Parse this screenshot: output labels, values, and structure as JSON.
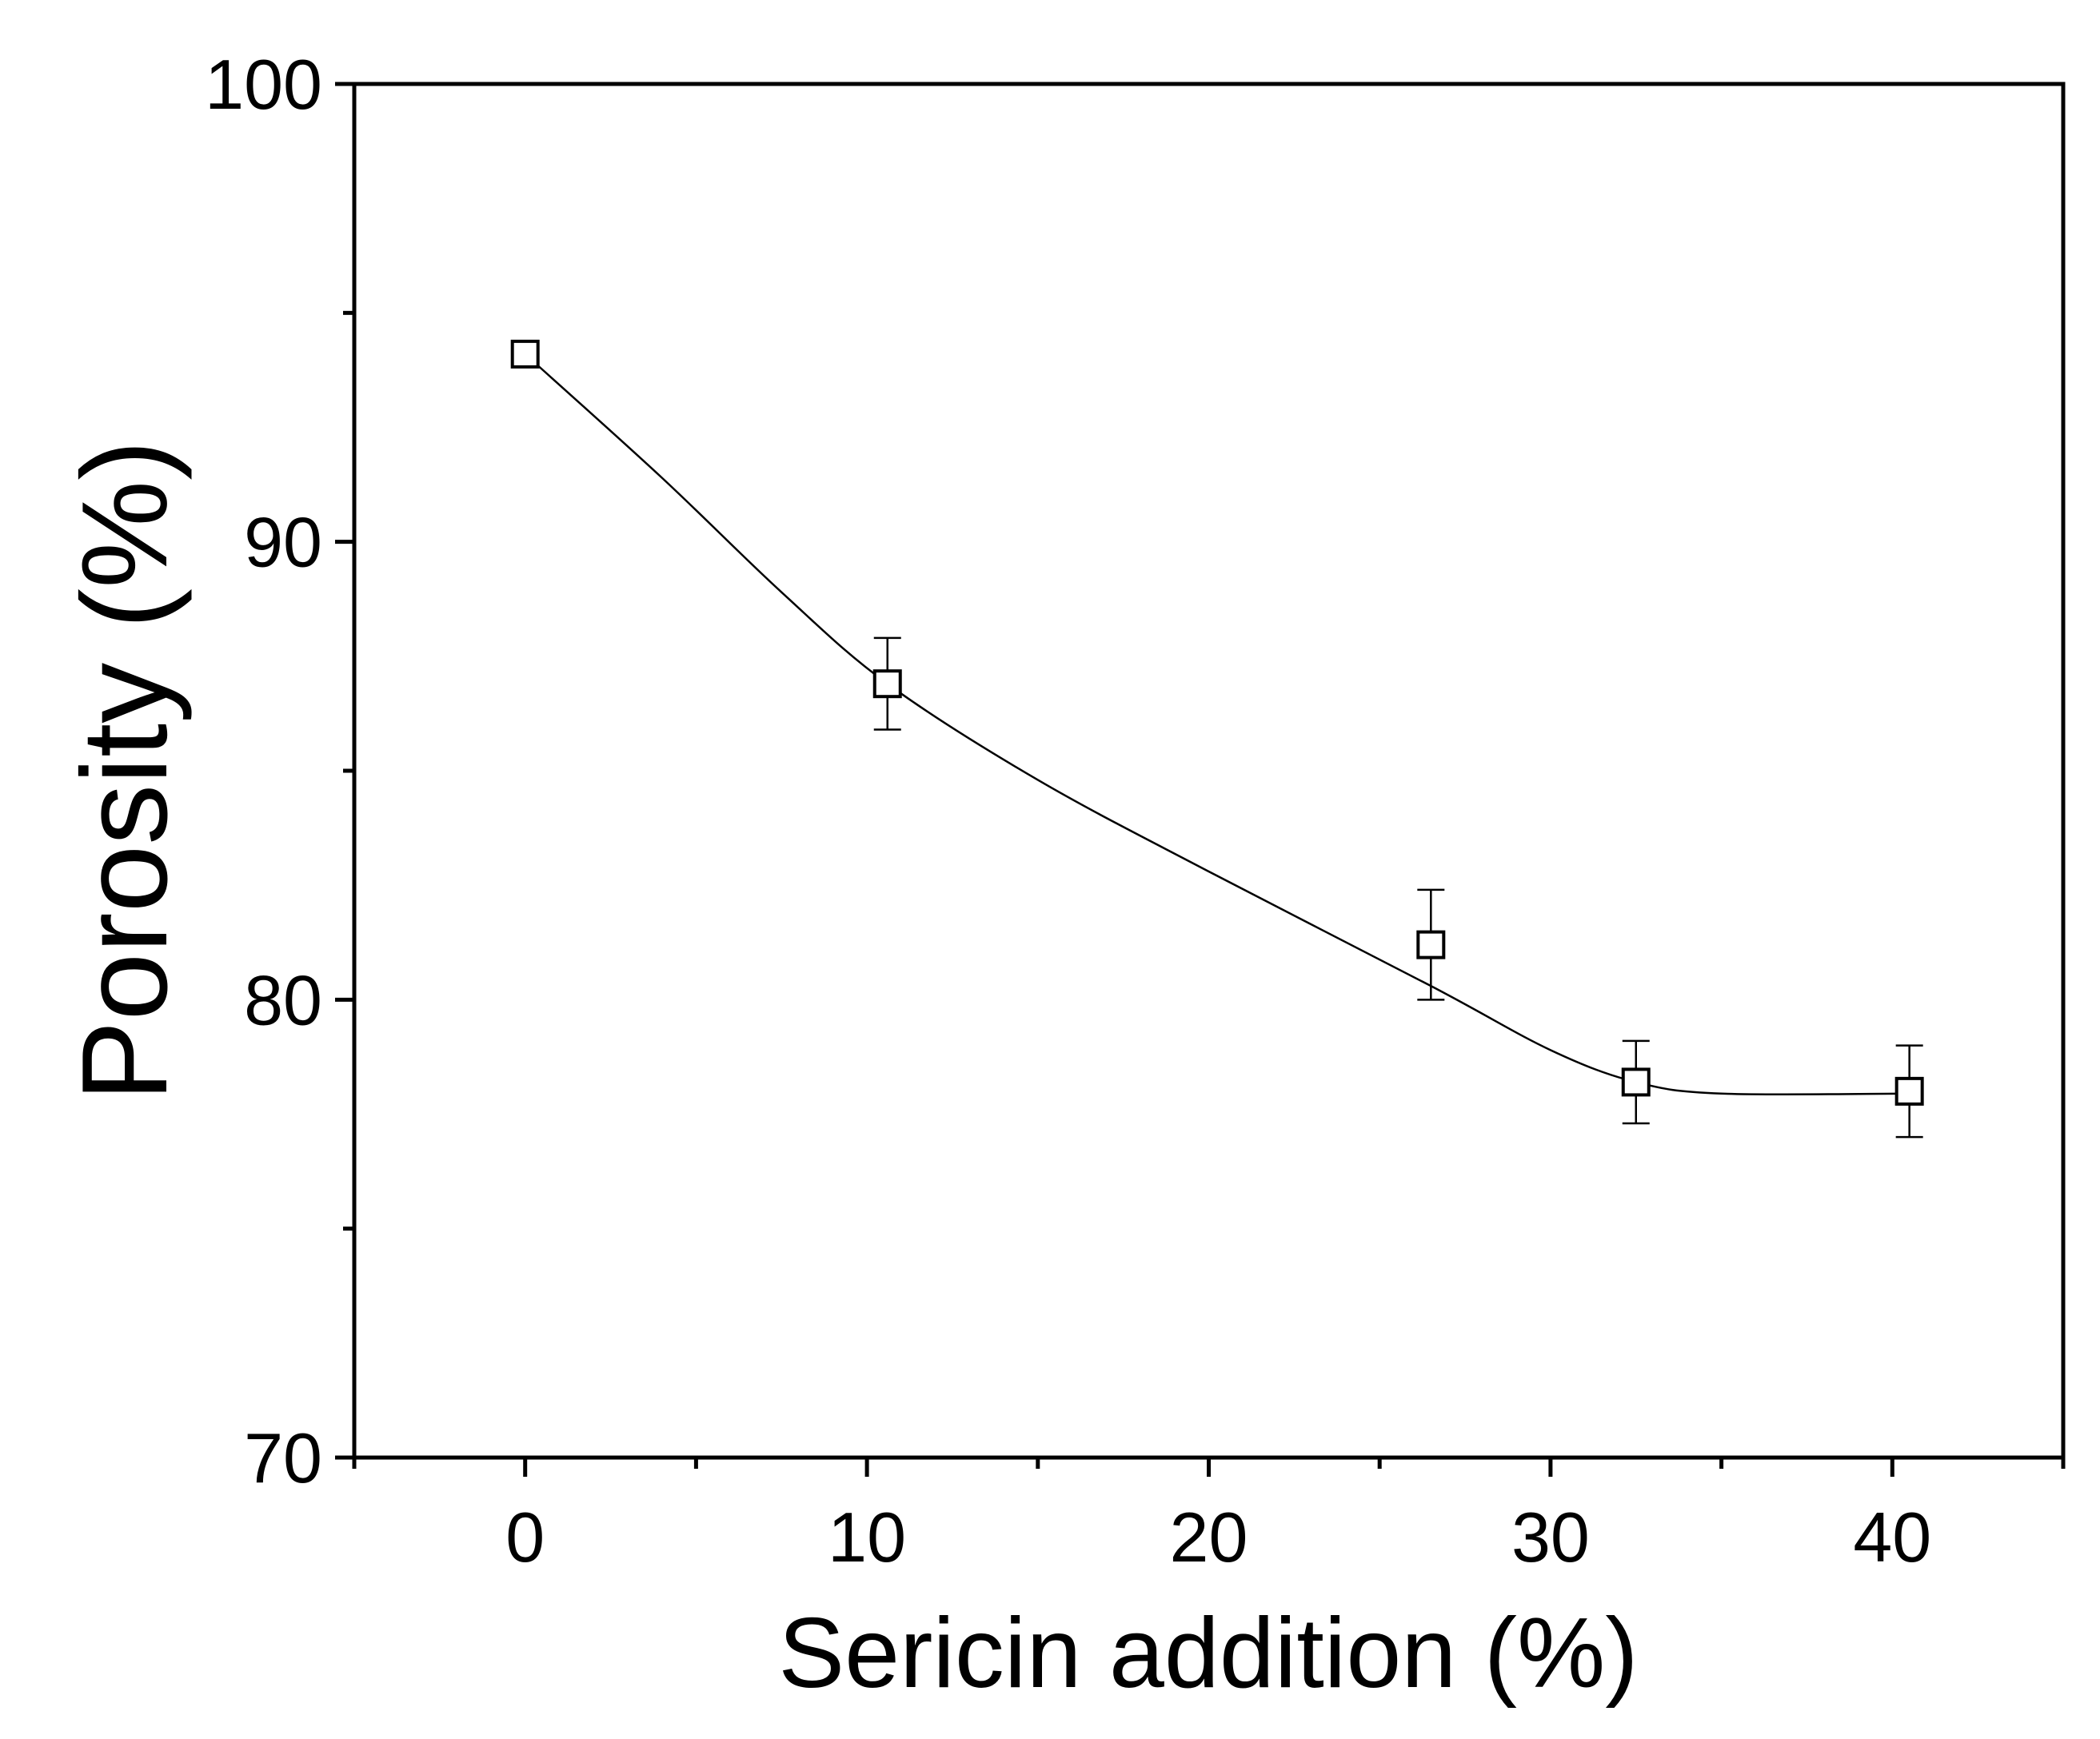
{
  "chart_data": {
    "type": "scatter",
    "title": "",
    "xlabel": "Sericin addition (%)",
    "ylabel": "Porosity (%)",
    "xlim": [
      -5,
      45
    ],
    "ylim": [
      70,
      100
    ],
    "x_ticks": [
      0,
      10,
      20,
      30,
      40
    ],
    "x_minor_ticks": [
      -5,
      5,
      15,
      25,
      35,
      45
    ],
    "y_ticks": [
      70,
      80,
      90,
      100
    ],
    "y_minor_ticks": [
      75,
      85,
      95
    ],
    "grid": false,
    "legend": "none",
    "series": [
      {
        "marker": "open-square",
        "x": [
          0,
          10.6,
          26.5,
          32.5,
          40.5
        ],
        "y": [
          94.1,
          86.9,
          81.2,
          78.2,
          78.0
        ],
        "error": [
          0,
          1.0,
          1.2,
          0.9,
          1.0
        ]
      }
    ],
    "fit_curve": {
      "x": [
        0,
        4,
        7.5,
        10.6,
        15,
        20,
        26.5,
        30,
        32.5,
        35,
        40.5
      ],
      "y": [
        94.1,
        91.4,
        88.9,
        86.9,
        84.8,
        82.8,
        80.3,
        78.9,
        78.2,
        77.95,
        77.95
      ]
    }
  }
}
